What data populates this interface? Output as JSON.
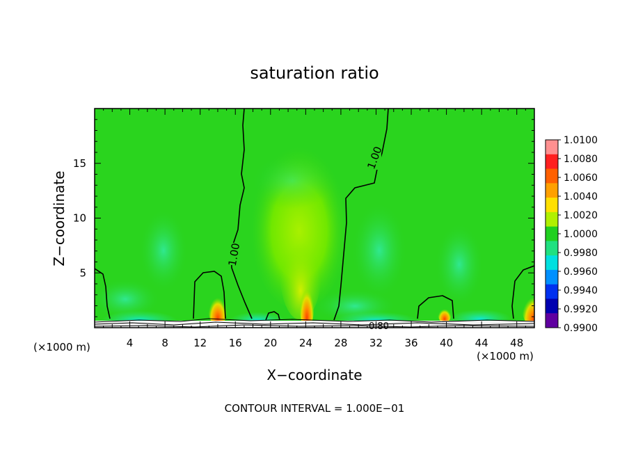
{
  "chart_data": {
    "type": "heatmap",
    "title": "saturation ratio",
    "xlabel": "X−coordinate",
    "ylabel": "Z−coordinate",
    "x_unit_left": "(×1000 m)",
    "x_unit_right": "(×1000 m)",
    "xlim": [
      0,
      50
    ],
    "ylim": [
      0,
      20
    ],
    "x_ticks": [
      4,
      8,
      12,
      16,
      20,
      24,
      28,
      32,
      36,
      40,
      44,
      48
    ],
    "y_ticks": [
      5,
      10,
      15
    ],
    "colorbar": {
      "levels": [
        "1.0100",
        "1.0080",
        "1.0060",
        "1.0040",
        "1.0020",
        "1.0000",
        "0.9980",
        "0.9960",
        "0.9940",
        "0.9920",
        "0.9900"
      ],
      "colors": [
        "#ff9090",
        "#ff2020",
        "#ff6000",
        "#ffa000",
        "#ffe000",
        "#b0f000",
        "#20d020",
        "#20e080",
        "#00e0e0",
        "#0090ff",
        "#0030f0",
        "#0000b0",
        "#6000a0"
      ]
    },
    "contour_labels": [
      {
        "text": "1.00",
        "x": 16.4,
        "z": 6.5
      },
      {
        "text": "1.00",
        "x": 32.3,
        "z": 15.5
      },
      {
        "text": "0.80",
        "x": 32.5,
        "z": 0.4
      }
    ],
    "footer": "CONTOUR INTERVAL = 1.000E−01"
  }
}
